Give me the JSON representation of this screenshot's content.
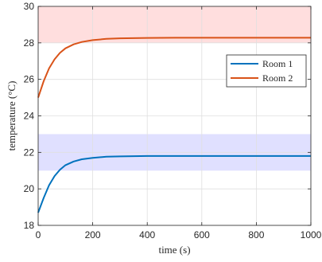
{
  "chart_data": {
    "type": "line",
    "xlabel": "time (s)",
    "ylabel": "temperature (°C)",
    "xlim": [
      0,
      1000
    ],
    "ylim": [
      18,
      30
    ],
    "xticks": [
      0,
      200,
      400,
      600,
      800,
      1000
    ],
    "yticks": [
      18,
      20,
      22,
      24,
      26,
      28,
      30
    ],
    "grid": true,
    "legend_position": "right",
    "bands": [
      {
        "ymin": 28,
        "ymax": 30,
        "color": "#ffdede"
      },
      {
        "ymin": 21,
        "ymax": 23,
        "color": "#e0e0ff"
      }
    ],
    "series": [
      {
        "name": "Room 1",
        "color": "#0072bd",
        "x": [
          0,
          20,
          40,
          60,
          80,
          100,
          130,
          160,
          200,
          250,
          300,
          400,
          500,
          600,
          700,
          800,
          900,
          1000
        ],
        "y": [
          18.7,
          19.5,
          20.2,
          20.7,
          21.05,
          21.3,
          21.5,
          21.62,
          21.7,
          21.76,
          21.78,
          21.8,
          21.8,
          21.8,
          21.8,
          21.8,
          21.8,
          21.8
        ]
      },
      {
        "name": "Room 2",
        "color": "#d95319",
        "x": [
          0,
          20,
          40,
          60,
          80,
          100,
          130,
          160,
          200,
          250,
          300,
          400,
          500,
          600,
          700,
          800,
          900,
          1000
        ],
        "y": [
          25.0,
          25.9,
          26.6,
          27.1,
          27.45,
          27.7,
          27.92,
          28.05,
          28.15,
          28.22,
          28.25,
          28.27,
          28.28,
          28.28,
          28.28,
          28.28,
          28.28,
          28.28
        ]
      }
    ]
  }
}
